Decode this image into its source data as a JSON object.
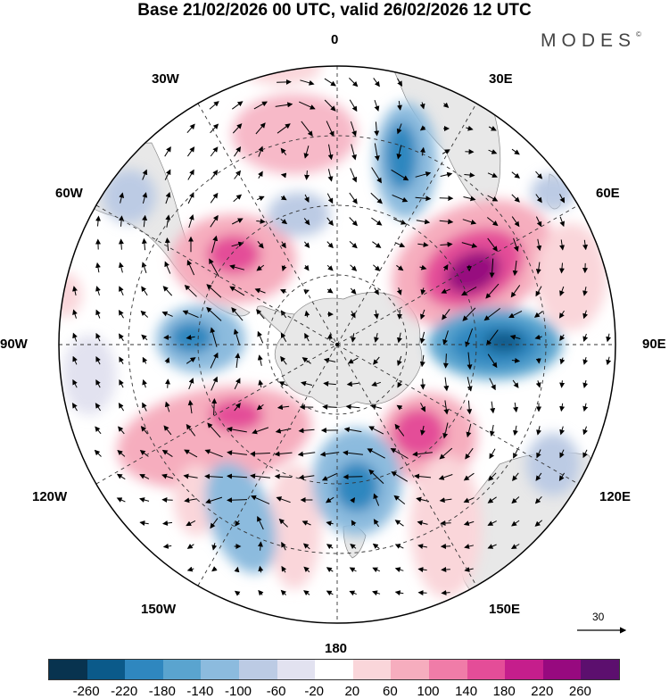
{
  "title": "Base 21/02/2026 00 UTC, valid 26/02/2026 12 UTC",
  "logo": "MODES",
  "logo_mark": "©",
  "longitude_labels": {
    "top": "0",
    "bottom": "180",
    "left": "90W",
    "right": "90E",
    "l30w": "30W",
    "l60w": "60W",
    "l120w": "120W",
    "l150w": "150W",
    "l30e": "30E",
    "l60e": "60E",
    "l120e": "120E",
    "l150e": "150E"
  },
  "vector_scale_label": "30",
  "colorbar": {
    "colors": [
      "#08334f",
      "#0b5a8a",
      "#2f87bf",
      "#5aa4cf",
      "#8cbbde",
      "#bccbe4",
      "#e2e2f0",
      "#ffffff",
      "#fad6da",
      "#f6adbe",
      "#f07ca8",
      "#e44d98",
      "#c51e8c",
      "#97097f",
      "#5c0f6e"
    ],
    "tick_labels": [
      "-260",
      "-220",
      "-180",
      "-140",
      "-100",
      "-60",
      "-20",
      "20",
      "60",
      "100",
      "140",
      "180",
      "220",
      "260"
    ]
  }
}
